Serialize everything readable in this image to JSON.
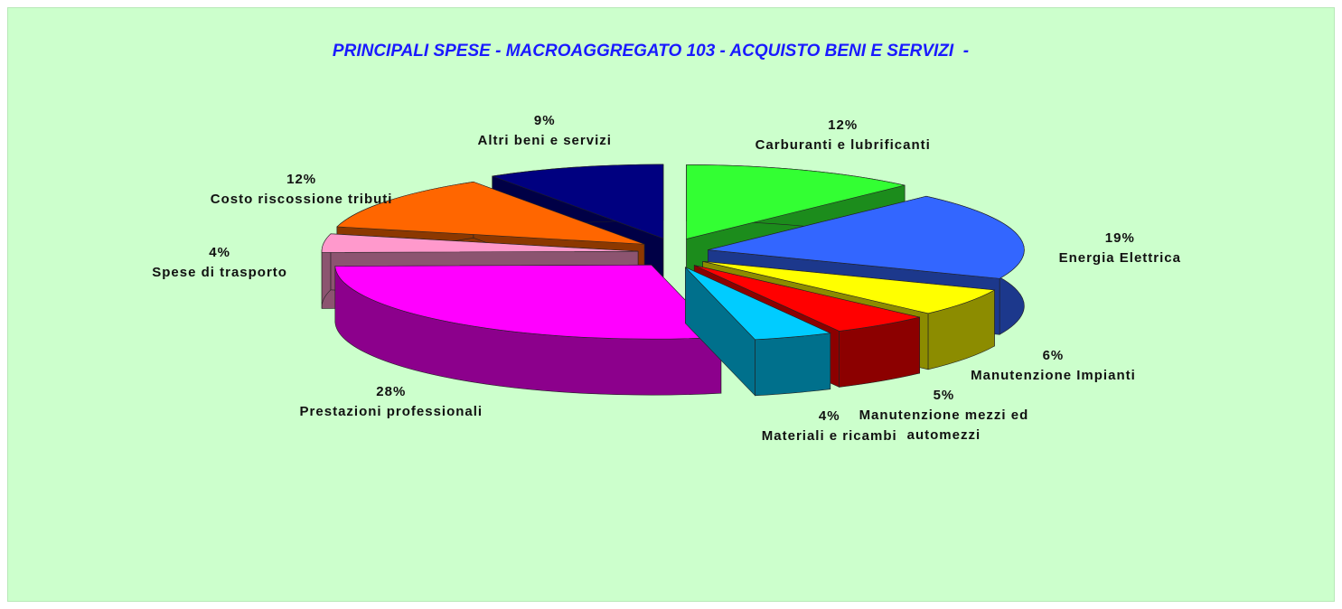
{
  "chart_data": {
    "type": "pie",
    "title": "PRINCIPALI SPESE - MACROAGGREGATO 103 - ACQUISTO BENI E SERVIZI  -",
    "categories": [
      "Carburanti e lubrificanti",
      "Energia Elettrica",
      "Manutenzione Impianti",
      "Manutenzione mezzi ed automezzi",
      "Materiali e ricambi",
      "Prestazioni professionali",
      "Spese di trasporto",
      "Costo riscossione tributi",
      "Altri beni e servizi"
    ],
    "values": [
      12,
      19,
      6,
      5,
      4,
      28,
      4,
      12,
      9
    ],
    "value_labels": [
      "12%",
      "19%",
      "6%",
      "5%",
      "4%",
      "28%",
      "4%",
      "12%",
      "9%"
    ],
    "colors": [
      "#33ff33",
      "#3366ff",
      "#ffff00",
      "#ff0000",
      "#00ccff",
      "#ff00ff",
      "#ff99cc",
      "#ff6600",
      "#000080"
    ]
  }
}
